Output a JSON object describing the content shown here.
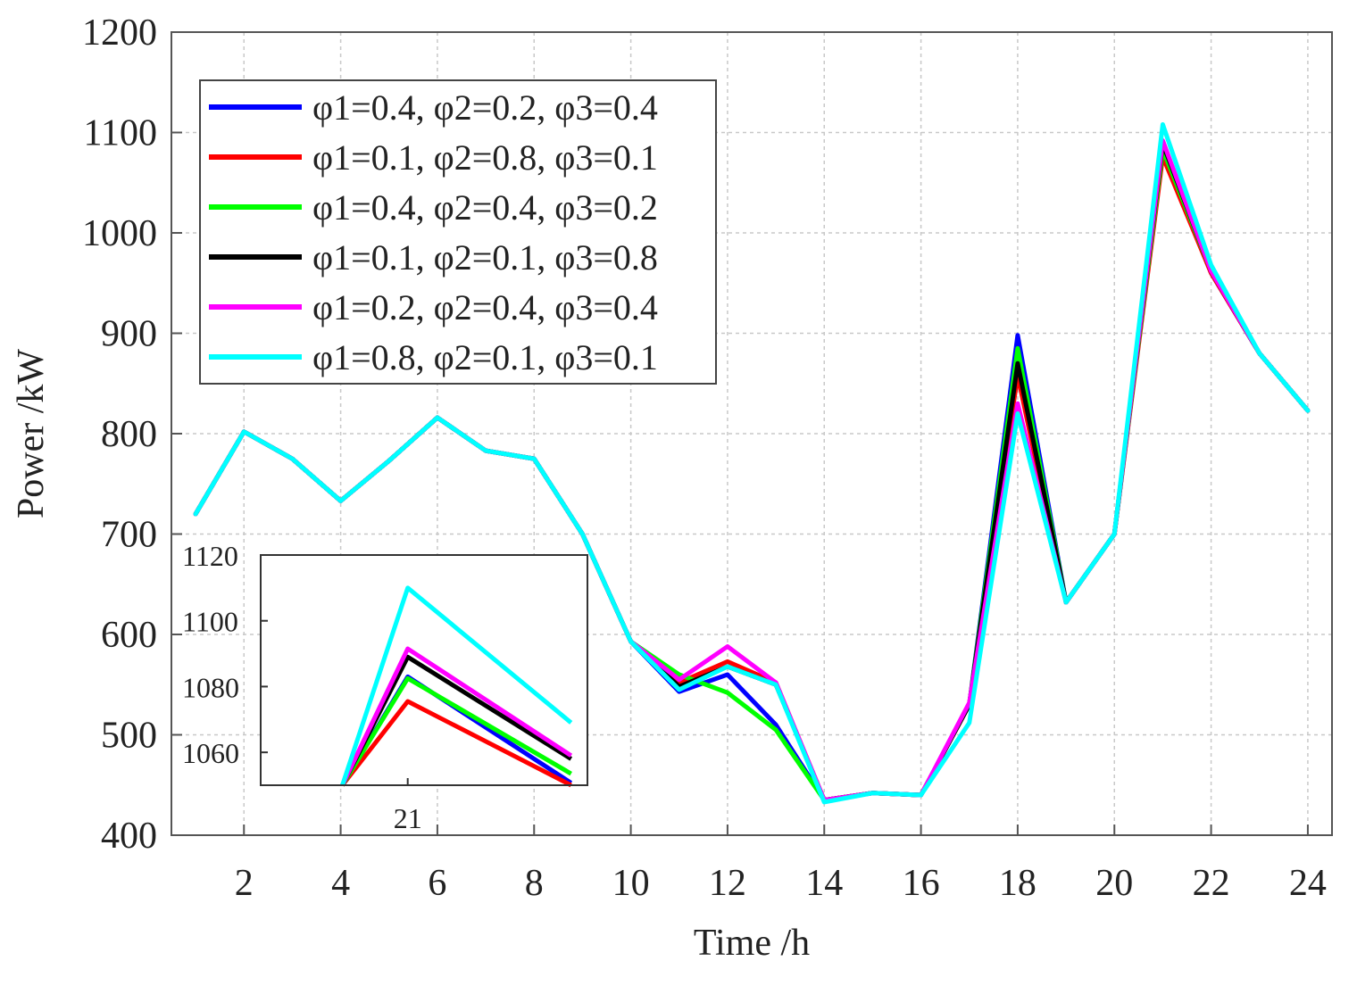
{
  "chart_data": [
    {
      "type": "line",
      "xlabel": "Time /h",
      "ylabel": "Power /kW",
      "xlim": [
        0.5,
        24.5
      ],
      "ylim": [
        400,
        1200
      ],
      "xticks": [
        2,
        4,
        6,
        8,
        10,
        12,
        14,
        16,
        18,
        20,
        22,
        24
      ],
      "yticks": [
        400,
        500,
        600,
        700,
        800,
        900,
        1000,
        1100,
        1200
      ],
      "grid": true,
      "legend_position": "top-left",
      "x": [
        1,
        2,
        3,
        4,
        5,
        6,
        7,
        8,
        9,
        10,
        11,
        12,
        13,
        14,
        15,
        16,
        17,
        18,
        19,
        20,
        21,
        22,
        23,
        24
      ],
      "series": [
        {
          "name": "φ1=0.4, φ2=0.2, φ3=0.4",
          "color": "#0000ff",
          "values": [
            720,
            802,
            775,
            733,
            773,
            816,
            783,
            775,
            700,
            593,
            543,
            560,
            510,
            435,
            442,
            440,
            530,
            898,
            632,
            700,
            1083,
            960,
            880,
            823
          ]
        },
        {
          "name": "φ1=0.1, φ2=0.8, φ3=0.1",
          "color": "#ff0000",
          "values": [
            720,
            802,
            775,
            733,
            773,
            816,
            783,
            775,
            700,
            593,
            552,
            573,
            552,
            435,
            442,
            440,
            530,
            858,
            632,
            700,
            1076,
            960,
            880,
            823
          ]
        },
        {
          "name": "φ1=0.4, φ2=0.4, φ3=0.2",
          "color": "#00ff00",
          "values": [
            720,
            802,
            775,
            733,
            773,
            816,
            783,
            775,
            700,
            593,
            560,
            542,
            505,
            435,
            442,
            440,
            530,
            885,
            632,
            700,
            1083,
            962,
            880,
            823
          ]
        },
        {
          "name": "φ1=0.1, φ2=0.1, φ3=0.8",
          "color": "#000000",
          "values": [
            720,
            802,
            775,
            733,
            773,
            816,
            783,
            775,
            700,
            593,
            548,
            568,
            550,
            435,
            442,
            440,
            530,
            870,
            632,
            700,
            1089,
            962,
            880,
            823
          ]
        },
        {
          "name": "φ1=0.2, φ2=0.4, φ3=0.4",
          "color": "#ff00ff",
          "values": [
            720,
            802,
            775,
            733,
            773,
            816,
            783,
            775,
            700,
            593,
            555,
            588,
            552,
            435,
            442,
            440,
            532,
            830,
            632,
            700,
            1092,
            962,
            880,
            823
          ]
        },
        {
          "name": "φ1=0.8, φ2=0.1, φ3=0.1",
          "color": "#00ffff",
          "values": [
            720,
            802,
            775,
            733,
            773,
            816,
            783,
            775,
            700,
            593,
            545,
            568,
            550,
            433,
            442,
            440,
            512,
            820,
            632,
            700,
            1108,
            968,
            880,
            823
          ]
        }
      ]
    },
    {
      "type": "line",
      "role": "inset zoom",
      "xlabel": "",
      "ylabel": "",
      "xlim": [
        20.55,
        21.55
      ],
      "ylim": [
        1050,
        1120
      ],
      "xticks": [
        21
      ],
      "yticks": [
        1060,
        1080,
        1100,
        1120
      ],
      "grid": false,
      "x": [
        20.8,
        21,
        21.5
      ],
      "series": [
        {
          "name": "φ1=0.4, φ2=0.2, φ3=0.4",
          "color": "#0000ff",
          "values": [
            1050.0,
            1083.0,
            1050.7
          ]
        },
        {
          "name": "φ1=0.1, φ2=0.8, φ3=0.1",
          "color": "#ff0000",
          "values": [
            1050.0,
            1075.5,
            1050.0
          ]
        },
        {
          "name": "φ1=0.4, φ2=0.4, φ3=0.2",
          "color": "#00ff00",
          "values": [
            1050.0,
            1082.5,
            1053.5
          ]
        },
        {
          "name": "φ1=0.1, φ2=0.1, φ3=0.8",
          "color": "#000000",
          "values": [
            1050.0,
            1089.0,
            1058.0
          ]
        },
        {
          "name": "φ1=0.2, φ2=0.4, φ3=0.4",
          "color": "#ff00ff",
          "values": [
            1050.0,
            1091.5,
            1059.0
          ]
        },
        {
          "name": "φ1=0.8, φ2=0.1, φ3=0.1",
          "color": "#00ffff",
          "values": [
            1050.0,
            1110.0,
            1069.0
          ]
        }
      ]
    }
  ]
}
